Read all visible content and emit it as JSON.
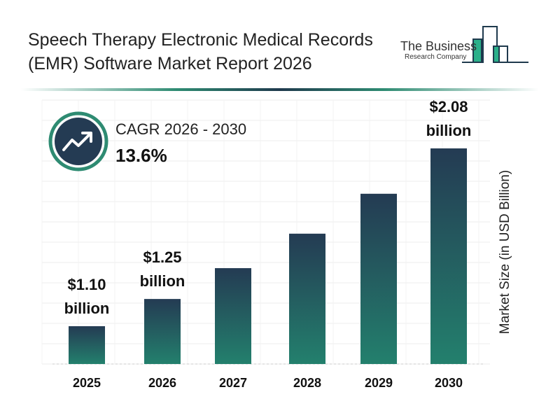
{
  "header": {
    "title": "Speech Therapy Electronic Medical Records (EMR) Software Market Report 2026"
  },
  "logo": {
    "line1": "The Business",
    "line2": "Research Company"
  },
  "cagr": {
    "label": "CAGR 2026 - 2030",
    "value": "13.6%",
    "icon": "trending-up-icon"
  },
  "colors": {
    "bar_top": "#243b53",
    "bar_bottom": "#23806d",
    "accent": "#2e8b72"
  },
  "chart_data": {
    "type": "bar",
    "categories": [
      "2025",
      "2026",
      "2027",
      "2028",
      "2029",
      "2030"
    ],
    "values": [
      1.1,
      1.25,
      1.42,
      1.61,
      1.83,
      2.08
    ],
    "data_labels": [
      {
        "index": 0,
        "line1": "$1.10",
        "line2": "billion"
      },
      {
        "index": 1,
        "line1": "$1.25",
        "line2": "billion"
      },
      {
        "index": 5,
        "line1": "$2.08",
        "line2": "billion"
      }
    ],
    "ylabel": "Market Size (in USD Billion)",
    "grid": true
  }
}
